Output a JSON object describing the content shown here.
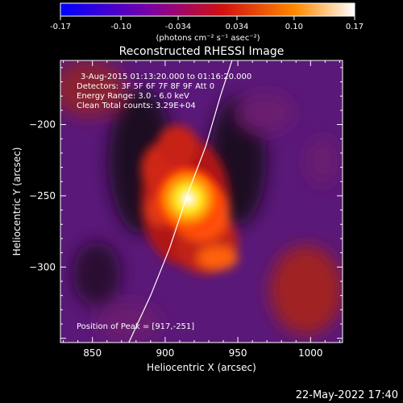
{
  "colorbar": {
    "ticks": [
      "-0.17",
      "-0.10",
      "-0.034",
      "0.034",
      "0.10",
      "0.17"
    ],
    "unit_label": "(photons cm⁻² s⁻¹ asec⁻²)",
    "min": -0.17,
    "max": 0.17,
    "colors": [
      "#0000ff",
      "#7a00a8",
      "#d01010",
      "#ff8a00",
      "#ffffff"
    ]
  },
  "chart_data": {
    "type": "heatmap",
    "title": "Reconstructed RHESSI Image",
    "xlabel": "Heliocentric X (arcsec)",
    "ylabel": "Heliocentric Y (arcsec)",
    "xlim": [
      828,
      1022
    ],
    "ylim": [
      -353,
      -155
    ],
    "x_ticks": [
      "850",
      "900",
      "950",
      "1000"
    ],
    "x_tick_values": [
      850,
      900,
      950,
      1000
    ],
    "y_ticks": [
      "-200",
      "-250",
      "-300"
    ],
    "y_tick_values": [
      -200,
      -250,
      -300
    ],
    "annotations": [
      "3-Aug-2015 01:13:20.000 to 01:16:20.000",
      "Detectors: 3F 5F 6F 7F 8F 9F Att 0",
      "Energy Range: 3.0 - 6.0 keV",
      "Clean     Total counts: 3.29E+04"
    ],
    "peak_label": "Position of Peak = [917,-251]",
    "peak": {
      "x": 917,
      "y": -251
    },
    "limb_curve": [
      [
        875,
        -353
      ],
      [
        890,
        -320
      ],
      [
        903,
        -287
      ],
      [
        915,
        -250
      ],
      [
        928,
        -215
      ],
      [
        938,
        -180
      ],
      [
        946,
        -155
      ]
    ]
  },
  "footer": {
    "date": "22-May-2022 17:40"
  }
}
